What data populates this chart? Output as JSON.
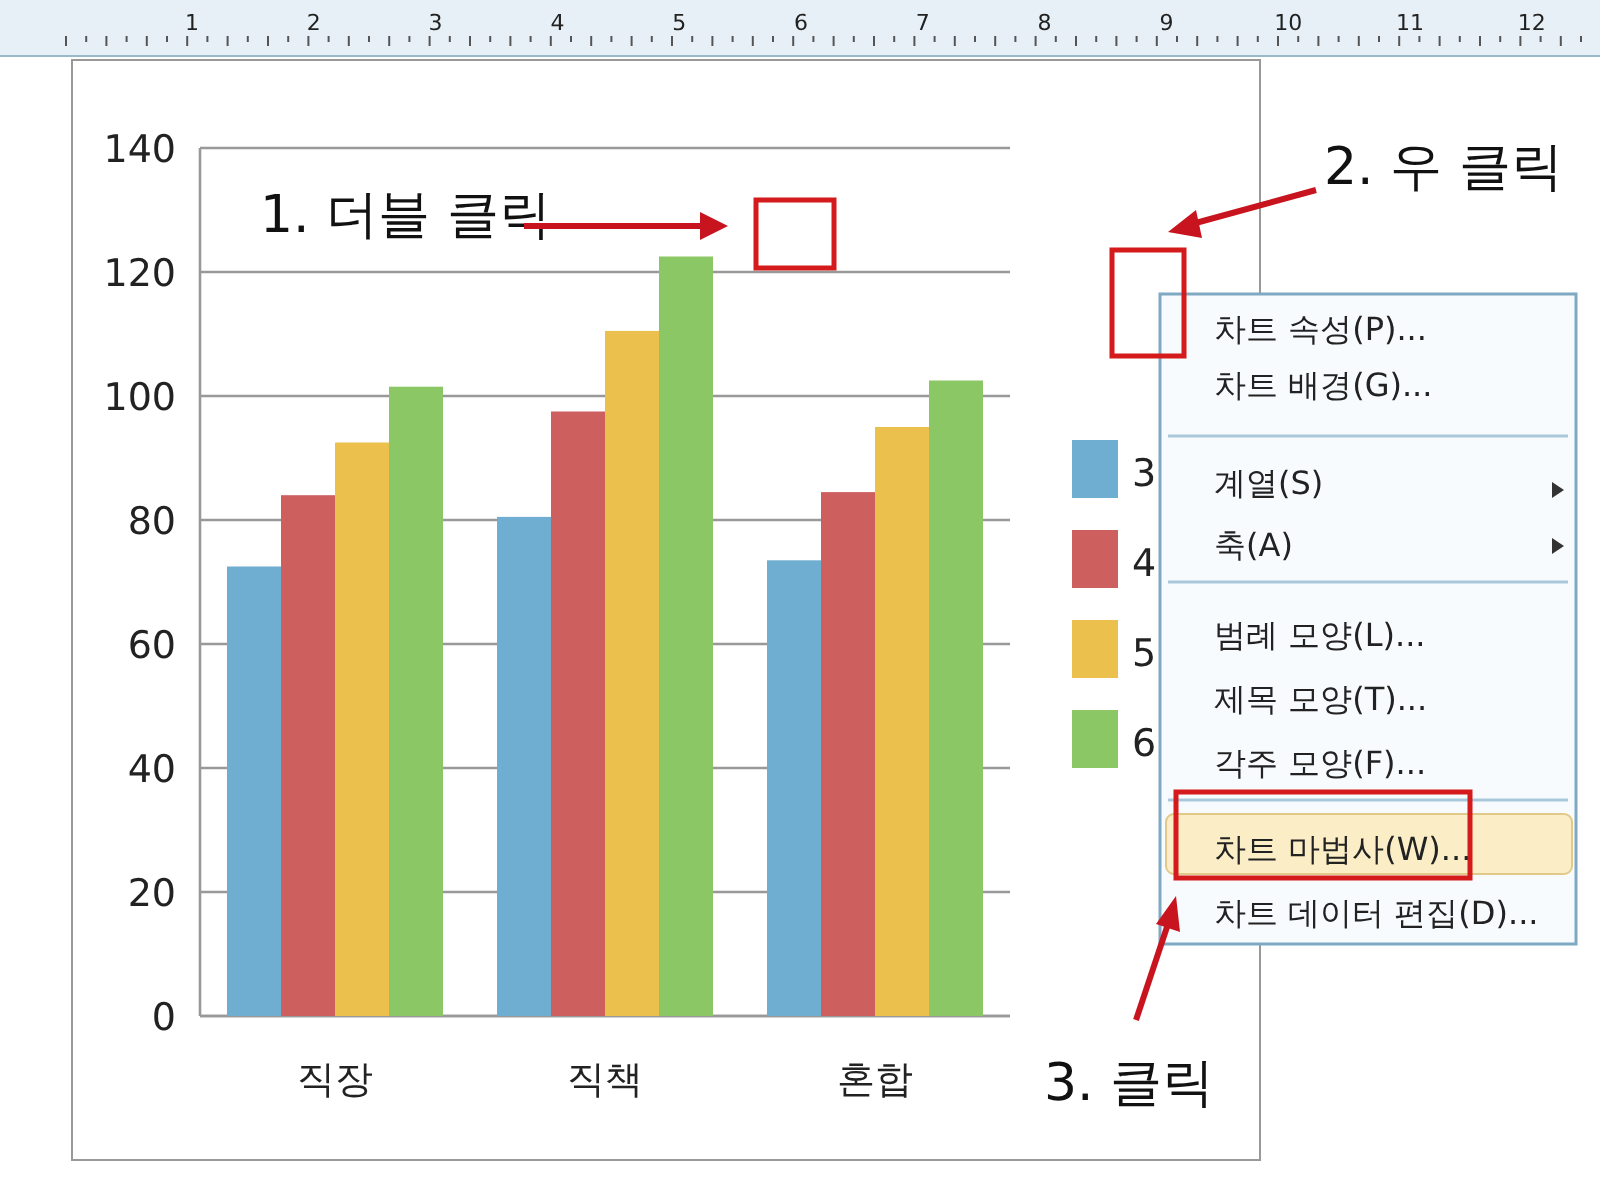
{
  "chart_data": {
    "type": "bar",
    "categories": [
      "직장",
      "직책",
      "혼합"
    ],
    "series": [
      {
        "name": "3",
        "color": "#6fadd1",
        "values": [
          72.5,
          80.5,
          73.5
        ]
      },
      {
        "name": "4",
        "color": "#cd5f5f",
        "values": [
          84,
          97.5,
          84.5
        ]
      },
      {
        "name": "5",
        "color": "#ecc04c",
        "values": [
          92.5,
          110.5,
          95
        ]
      },
      {
        "name": "6",
        "color": "#8cc765",
        "values": [
          101.5,
          122.5,
          102.5
        ]
      }
    ],
    "ylim": [
      0,
      140
    ],
    "yticks": [
      0,
      20,
      40,
      60,
      80,
      100,
      120,
      140
    ],
    "grid": "y",
    "legend": "right",
    "annotations": [
      "1. 더블 클릭",
      "2. 우 클릭",
      "3. 클릭",
      "차트 속성(P)...",
      "차트 배경(G)...",
      "계열(S)",
      "축(A)",
      "범례 모양(L)...",
      "제목 모양(T)...",
      "각주 모양(F)...",
      "차트 마법사(W)...",
      "차트 데이터 편집(D)...",
      "12",
      "11",
      "10",
      "9",
      "8",
      "7",
      "6",
      "5",
      "4",
      "3",
      "2",
      "1"
    ]
  }
}
